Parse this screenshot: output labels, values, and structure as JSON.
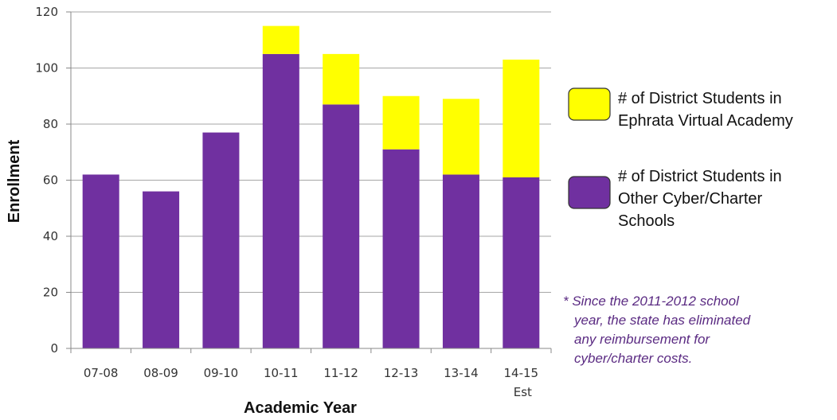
{
  "chart_data": {
    "type": "bar",
    "stacked": true,
    "categories": [
      "07-08",
      "08-09",
      "09-10",
      "10-11",
      "11-12",
      "12-13",
      "13-14",
      "14-15"
    ],
    "category_sublabels": [
      "",
      "",
      "",
      "",
      "",
      "",
      "",
      "Est"
    ],
    "series": [
      {
        "name": "# of District Students in Other Cyber/Charter Schools",
        "color": "#7030a0",
        "values": [
          62,
          56,
          77,
          105,
          87,
          71,
          62,
          61
        ]
      },
      {
        "name": "# of District Students in Ephrata Virtual Academy",
        "color": "#ffff00",
        "values": [
          0,
          0,
          0,
          10,
          18,
          19,
          27,
          42
        ]
      }
    ],
    "xlabel": "Academic Year",
    "ylabel": "Enrollment",
    "ylim": [
      0,
      120
    ],
    "yticks": [
      0,
      20,
      40,
      60,
      80,
      100,
      120
    ],
    "grid": true,
    "legend_position": "right",
    "legend_lines": [
      [
        "# of District Students in",
        "Ephrata Virtual Academy"
      ],
      [
        "# of District Students in",
        "Other Cyber/Charter",
        "Schools"
      ]
    ],
    "footnote_lines": [
      "* Since the 2011-2012 school",
      "year, the state has eliminated",
      "any reimbursement for",
      "cyber/charter costs."
    ]
  }
}
